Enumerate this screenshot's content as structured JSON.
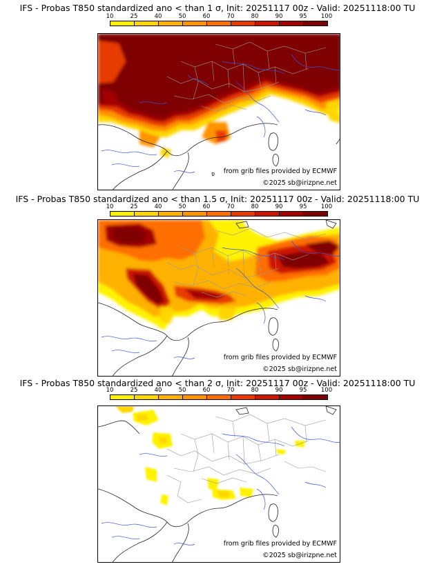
{
  "legend": {
    "ticks": [
      "10",
      "25",
      "40",
      "50",
      "60",
      "70",
      "80",
      "90",
      "95",
      "100"
    ],
    "colors": [
      "#fff200",
      "#ffd600",
      "#ffb100",
      "#ff9300",
      "#ff6e00",
      "#e83a00",
      "#cc1400",
      "#a30000",
      "#7f0000"
    ]
  },
  "panels": [
    {
      "title": "IFS - Probas T850  standardized ano < than 1 σ, Init: 20251117 00z - Valid: 20251118:00 TU",
      "source": "from grib files provided by ECMWF",
      "copyright": "©2025 sb@irizpne.net"
    },
    {
      "title": "IFS - Probas T850  standardized ano < than 1.5 σ, Init: 20251117 00z - Valid: 20251118:00 TU",
      "source": "from grib files provided by ECMWF",
      "copyright": "©2025 sb@irizpne.net"
    },
    {
      "title": "IFS - Probas T850  standardized ano < than 2 σ, Init: 20251117 00z - Valid: 20251118:00 TU",
      "source": "from grib files provided by ECMWF",
      "copyright": "©2025 sb@irizpne.net"
    }
  ]
}
